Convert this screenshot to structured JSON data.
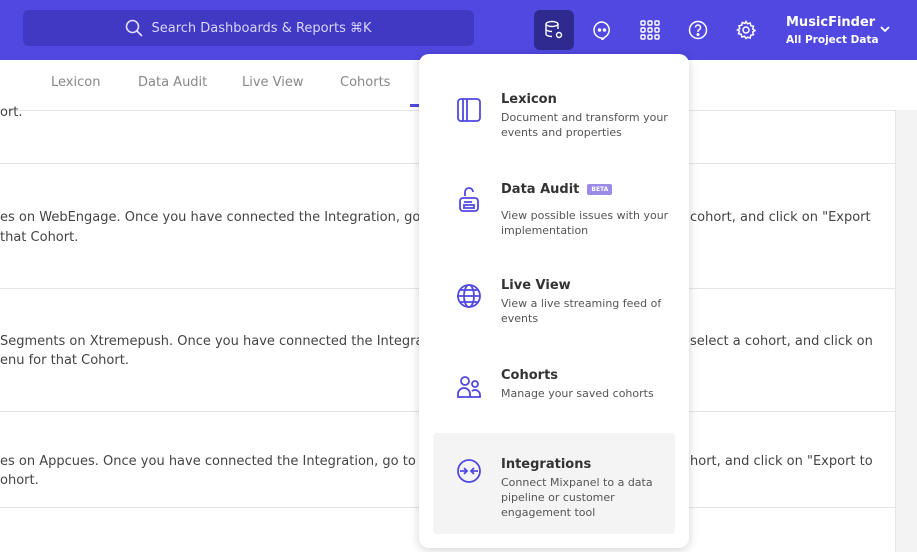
{
  "header": {
    "search_placeholder": "Search Dashboards & Reports ⌘K",
    "project_name": "MusicFinder",
    "project_scope": "All Project Data",
    "icons": [
      "data-management-icon",
      "chat-icon",
      "apps-grid-icon",
      "help-icon",
      "settings-icon"
    ],
    "accent": "#5048e0"
  },
  "tabs": [
    "Lexicon",
    "Data Audit",
    "Live View",
    "Cohorts"
  ],
  "rows": [
    {
      "left": [
        "ort."
      ],
      "right": []
    },
    {
      "left": [
        "es on WebEngage. Once you have connected the Integration, go to the",
        "that Cohort."
      ],
      "right": [
        "cohort, and click on \"Export"
      ]
    },
    {
      "left": [
        "Segments on Xtremepush. Once you have connected the Integration, ",
        "enu for that Cohort."
      ],
      "right": [
        "select a cohort, and click on"
      ]
    },
    {
      "left": [
        "es on Appcues. Once you have connected the Integration, go to the M",
        "ohort."
      ],
      "right": [
        "hort, and click on \"Export to"
      ]
    }
  ],
  "menu": {
    "items": [
      {
        "title": "Lexicon",
        "desc": "Document and transform your events and properties",
        "icon": "book-icon"
      },
      {
        "title": "Data Audit",
        "badge": "BETA",
        "desc": "View possible issues with your implementation",
        "icon": "audit-icon"
      },
      {
        "title": "Live View",
        "desc": "View a live streaming feed of events",
        "icon": "globe-icon"
      },
      {
        "title": "Cohorts",
        "desc": "Manage your saved cohorts",
        "icon": "users-icon"
      },
      {
        "title": "Integrations",
        "desc": "Connect Mixpanel to a data pipeline or customer engagement tool",
        "icon": "integrations-icon",
        "highlighted": true
      }
    ]
  }
}
